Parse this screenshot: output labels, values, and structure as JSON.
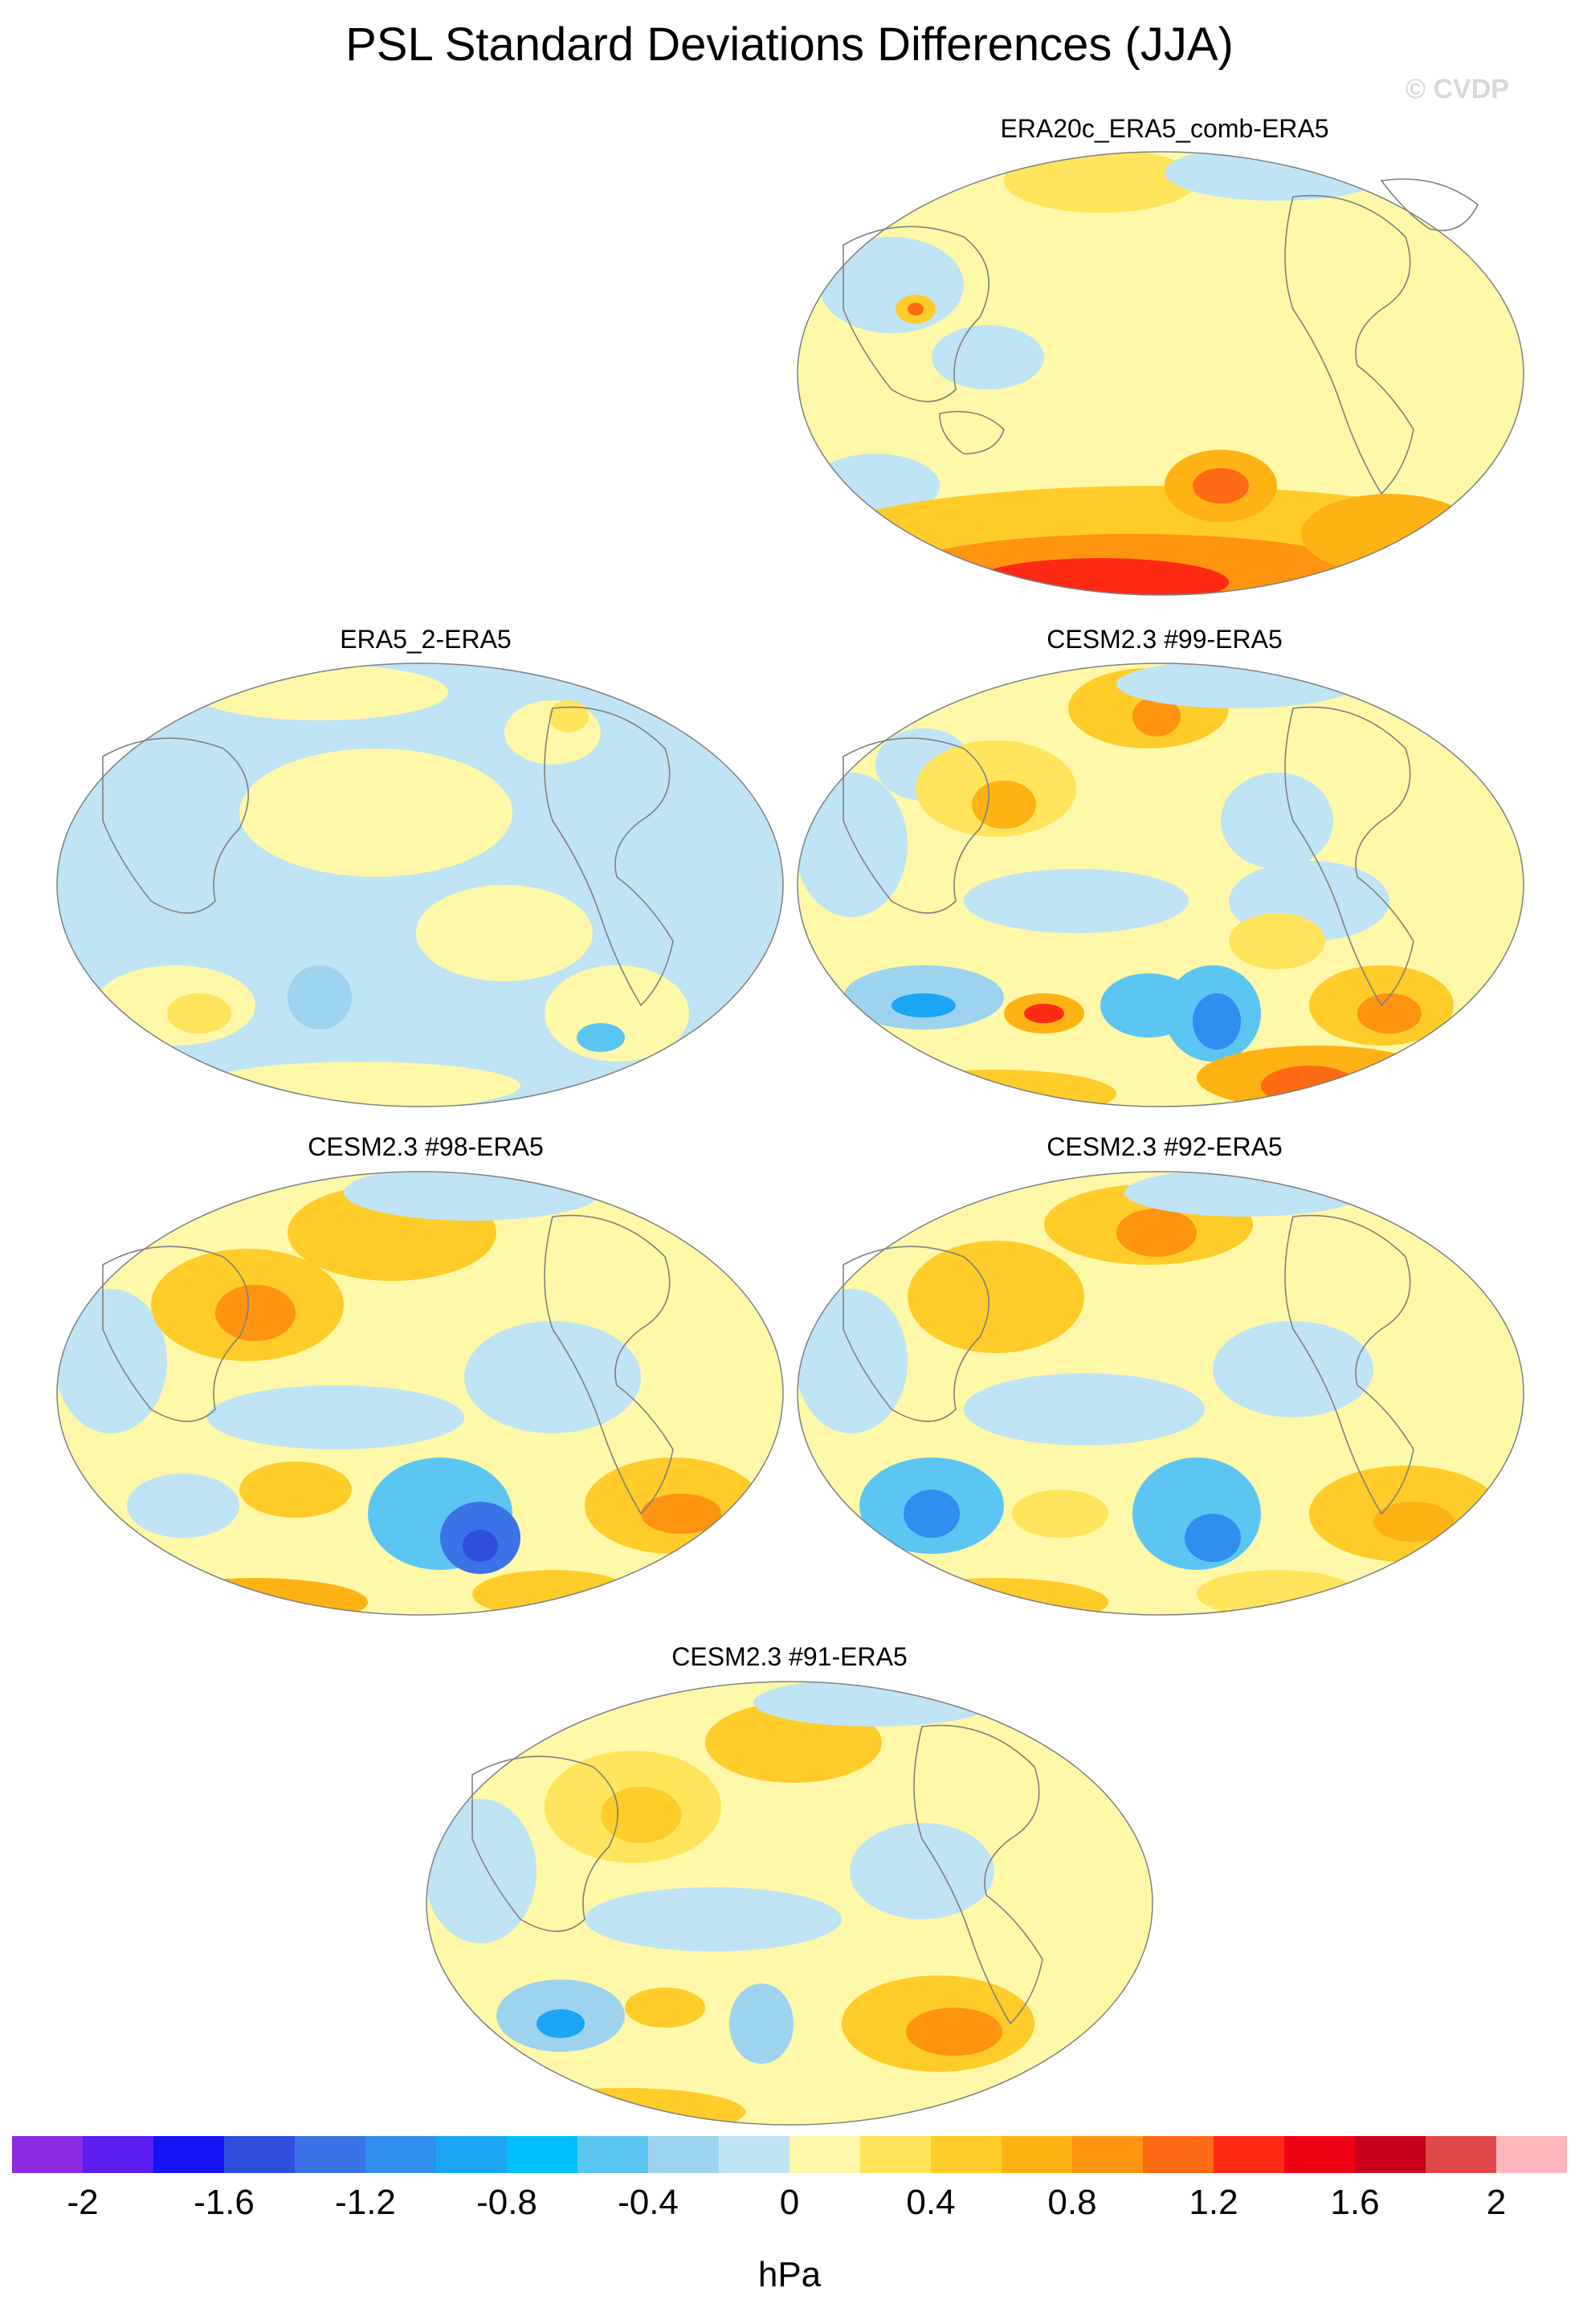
{
  "title": "PSL Standard Deviations Differences (JJA)",
  "watermark": "© CVDP",
  "panels": [
    {
      "title": "ERA20c_ERA5_comb-ERA5"
    },
    {
      "title": "ERA5_2-ERA5"
    },
    {
      "title": "CESM2.3 #99-ERA5"
    },
    {
      "title": "CESM2.3 #98-ERA5"
    },
    {
      "title": "CESM2.3 #92-ERA5"
    },
    {
      "title": "CESM2.3 #91-ERA5"
    }
  ],
  "colorbar": {
    "units": "hPa",
    "colors": [
      "#8a2be2",
      "#5a1ef0",
      "#1414f5",
      "#2e4fdc",
      "#3b73e6",
      "#2f8ef0",
      "#1aa5f5",
      "#00c1ff",
      "#5bc6f2",
      "#9dd3ef",
      "#bfe4f5",
      "#fff8a8",
      "#ffe45c",
      "#ffcc2a",
      "#ffb214",
      "#ff9410",
      "#ff6a14",
      "#ff2a14",
      "#f00014",
      "#c8001e",
      "#e04848",
      "#ffb6bc"
    ],
    "tick_labels": [
      "-2",
      "-1.6",
      "-1.2",
      "-0.8",
      "-0.4",
      "0",
      "0.4",
      "0.8",
      "1.2",
      "1.6",
      "2"
    ]
  }
}
